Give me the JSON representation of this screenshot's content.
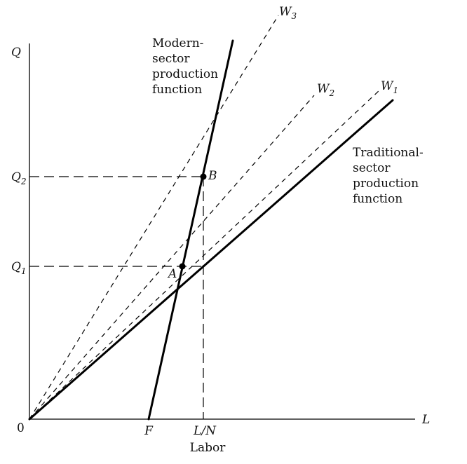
{
  "chart_data": {
    "type": "line",
    "xlabel": "Labor",
    "x_axis_symbol": "L",
    "y_axis_symbol": "Q",
    "origin_label": "0",
    "x_tick_labels": [
      "F",
      "L/N"
    ],
    "y_tick_labels": [
      {
        "base": "Q",
        "sub": "1"
      },
      {
        "base": "Q",
        "sub": "2"
      }
    ],
    "data_range": {
      "x": [
        0,
        550
      ],
      "y": [
        0,
        540
      ]
    },
    "points": {
      "F": {
        "x": 170,
        "y": 0
      },
      "LN": {
        "x": 248,
        "y": 0
      },
      "A": {
        "x": 218,
        "y": 218,
        "label": "A"
      },
      "B": {
        "x": 248,
        "y": 346,
        "label": "B"
      }
    },
    "series": [
      {
        "name": "Modern-sector production function",
        "label_lines": [
          "Modern-",
          "sector",
          "production",
          "function"
        ],
        "style": "solid",
        "points": [
          [
            170,
            0
          ],
          [
            290,
            540
          ]
        ]
      },
      {
        "name": "Traditional-sector production function",
        "label_lines": [
          "Traditional-",
          "sector",
          "production",
          "function"
        ],
        "style": "solid",
        "points": [
          [
            0,
            0
          ],
          [
            518,
            455
          ]
        ]
      },
      {
        "name": "W1",
        "base": "W",
        "sub": "1",
        "style": "dashed",
        "points": [
          [
            0,
            0
          ],
          [
            500,
            470
          ]
        ]
      },
      {
        "name": "W2",
        "base": "W",
        "sub": "2",
        "style": "dashed",
        "points": [
          [
            0,
            0
          ],
          [
            406,
            462
          ]
        ]
      },
      {
        "name": "W3",
        "base": "W",
        "sub": "3",
        "style": "dashed",
        "points": [
          [
            0,
            0
          ],
          [
            355,
            576
          ]
        ]
      }
    ],
    "guides": [
      {
        "from": "Q1",
        "to": "LN",
        "via": "A"
      },
      {
        "from": "Q2",
        "to": "B"
      }
    ]
  }
}
